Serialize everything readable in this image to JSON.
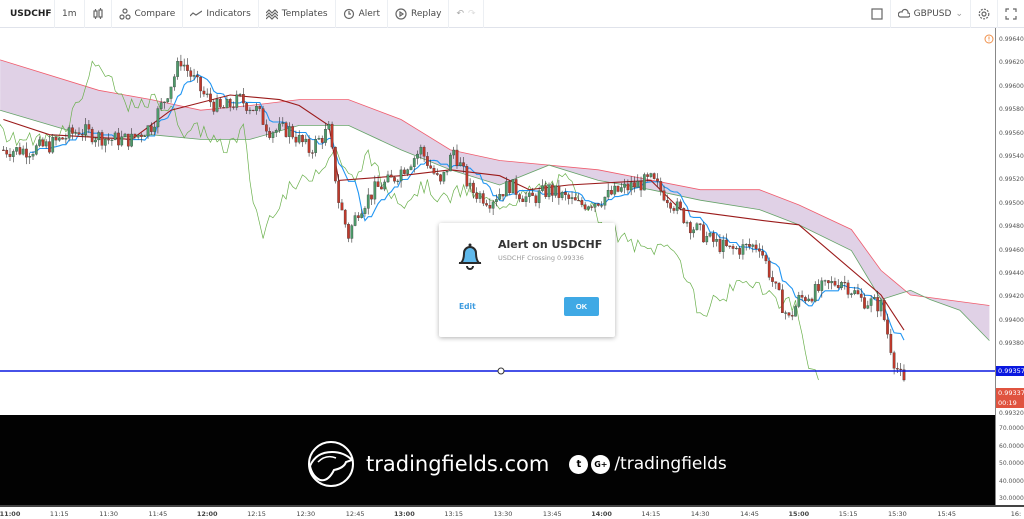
{
  "toolbar": {
    "symbol": "USDCHF",
    "interval": "1m",
    "compare": "Compare",
    "indicators": "Indicators",
    "templates": "Templates",
    "alert": "Alert",
    "replay": "Replay",
    "watchlist_symbol": "GBPUSD"
  },
  "colors": {
    "up": "#4d9a6a",
    "down": "#c0392b",
    "tenkan": "#2196f3",
    "kijun": "#9b1b1b",
    "chikou": "#6ab04c",
    "span_a": "#66a36a",
    "span_b": "#f05d6e",
    "cloud": "#d5c1dd",
    "alert_line": "#0a18e0",
    "last_price": "#e0533f"
  },
  "price_axis": {
    "labels": [
      "0.99640",
      "0.99620",
      "0.99600",
      "0.99580",
      "0.99560",
      "0.99540",
      "0.99520",
      "0.99500",
      "0.99480",
      "0.99460",
      "0.99440",
      "0.99420",
      "0.99400",
      "0.99380",
      "0.99320"
    ],
    "alert_price": "0.99357",
    "last_price": "0.99337",
    "countdown": "00:19"
  },
  "lower_axis": {
    "labels": [
      "70.0000",
      "60.0000",
      "50.0000",
      "40.0000",
      "30.0000"
    ]
  },
  "time_axis": [
    "11:00",
    "11:15",
    "11:30",
    "11:45",
    "12:00",
    "12:15",
    "12:30",
    "12:45",
    "13:00",
    "13:15",
    "13:30",
    "13:45",
    "14:00",
    "14:15",
    "14:30",
    "14:45",
    "15:00",
    "15:15",
    "15:30",
    "15:45",
    "16:"
  ],
  "dialog": {
    "title": "Alert on USDCHF",
    "subtitle": "USDCHF Crossing 0.99336",
    "edit": "Edit",
    "ok": "OK"
  },
  "watermark": {
    "site": "tradingfields.com",
    "social": "/tradingfields"
  },
  "chart_data": {
    "type": "candlestick",
    "price_path": [
      [
        "10:58",
        0.99546
      ],
      [
        "11:06",
        0.99546
      ],
      [
        "11:12",
        0.9955
      ],
      [
        "11:21",
        0.99563
      ],
      [
        "11:30",
        0.99555
      ],
      [
        "11:37",
        0.99555
      ],
      [
        "11:43",
        0.99567
      ],
      [
        "11:47",
        0.99589
      ],
      [
        "11:52",
        0.99623
      ],
      [
        "11:55",
        0.9961
      ],
      [
        "11:59",
        0.99593
      ],
      [
        "12:04",
        0.9958
      ],
      [
        "12:10",
        0.99589
      ],
      [
        "12:15",
        0.9958
      ],
      [
        "12:19",
        0.99563
      ],
      [
        "12:25",
        0.99563
      ],
      [
        "12:31",
        0.99546
      ],
      [
        "12:37",
        0.99563
      ],
      [
        "12:40",
        0.99503
      ],
      [
        "12:43",
        0.99473
      ],
      [
        "12:46",
        0.99495
      ],
      [
        "12:51",
        0.99512
      ],
      [
        "12:56",
        0.9952
      ],
      [
        "13:02",
        0.99537
      ],
      [
        "13:05",
        0.99546
      ],
      [
        "13:11",
        0.99516
      ],
      [
        "13:15",
        0.99546
      ],
      [
        "13:20",
        0.99512
      ],
      [
        "13:26",
        0.99503
      ],
      [
        "13:32",
        0.99516
      ],
      [
        "13:38",
        0.99503
      ],
      [
        "13:44",
        0.99512
      ],
      [
        "13:53",
        0.99499
      ],
      [
        "13:59",
        0.99503
      ],
      [
        "14:06",
        0.99512
      ],
      [
        "14:15",
        0.9952
      ],
      [
        "14:21",
        0.99503
      ],
      [
        "14:27",
        0.99482
      ],
      [
        "14:33",
        0.99469
      ],
      [
        "14:39",
        0.9946
      ],
      [
        "14:48",
        0.99465
      ],
      [
        "14:53",
        0.99426
      ],
      [
        "14:57",
        0.99401
      ],
      [
        "15:00",
        0.99418
      ],
      [
        "15:06",
        0.99426
      ],
      [
        "15:13",
        0.99435
      ],
      [
        "15:19",
        0.99418
      ],
      [
        "15:25",
        0.99413
      ],
      [
        "15:29",
        0.99366
      ],
      [
        "15:32",
        0.99345
      ]
    ],
    "span_b": [
      [
        "10:57",
        0.99623
      ],
      [
        "11:27",
        0.99597
      ],
      [
        "11:43",
        0.99589
      ],
      [
        "11:58",
        0.9958
      ],
      [
        "12:13",
        0.99584
      ],
      [
        "12:28",
        0.99589
      ],
      [
        "12:43",
        0.99589
      ],
      [
        "12:59",
        0.99572
      ],
      [
        "13:14",
        0.99546
      ],
      [
        "13:29",
        0.99537
      ],
      [
        "13:59",
        0.99529
      ],
      [
        "14:30",
        0.99512
      ],
      [
        "14:48",
        0.99512
      ],
      [
        "15:00",
        0.99499
      ],
      [
        "15:16",
        0.99478
      ],
      [
        "15:25",
        0.99443
      ],
      [
        "15:34",
        0.99422
      ],
      [
        "15:58",
        0.99413
      ]
    ],
    "span_a": [
      [
        "10:57",
        0.9958
      ],
      [
        "11:27",
        0.99555
      ],
      [
        "11:43",
        0.99559
      ],
      [
        "11:58",
        0.99555
      ],
      [
        "12:13",
        0.99555
      ],
      [
        "12:28",
        0.99567
      ],
      [
        "12:43",
        0.99567
      ],
      [
        "12:59",
        0.99546
      ],
      [
        "13:14",
        0.99529
      ],
      [
        "13:29",
        0.99516
      ],
      [
        "13:44",
        0.99533
      ],
      [
        "13:59",
        0.9952
      ],
      [
        "14:15",
        0.99512
      ],
      [
        "14:30",
        0.99503
      ],
      [
        "14:48",
        0.99495
      ],
      [
        "15:00",
        0.99482
      ],
      [
        "15:16",
        0.9946
      ],
      [
        "15:25",
        0.99418
      ],
      [
        "15:34",
        0.99426
      ],
      [
        "15:40",
        0.99418
      ],
      [
        "15:49",
        0.99409
      ],
      [
        "15:58",
        0.99383
      ]
    ],
    "kijun": [
      [
        "10:58",
        0.99572
      ],
      [
        "11:12",
        0.99559
      ],
      [
        "11:37",
        0.99555
      ],
      [
        "11:49",
        0.9958
      ],
      [
        "12:07",
        0.99593
      ],
      [
        "12:22",
        0.99589
      ],
      [
        "12:28",
        0.99584
      ],
      [
        "12:37",
        0.99567
      ],
      [
        "12:40",
        0.9952
      ],
      [
        "12:59",
        0.99524
      ],
      [
        "13:14",
        0.99529
      ],
      [
        "13:29",
        0.99524
      ],
      [
        "13:38",
        0.99512
      ],
      [
        "13:50",
        0.99516
      ],
      [
        "14:15",
        0.9952
      ],
      [
        "14:24",
        0.99495
      ],
      [
        "14:48",
        0.99486
      ],
      [
        "15:00",
        0.99482
      ],
      [
        "15:25",
        0.99422
      ],
      [
        "15:32",
        0.99392
      ]
    ],
    "alert_price": 0.99357,
    "last_price": 0.99337,
    "ylim": [
      0.99316,
      0.99652
    ]
  }
}
